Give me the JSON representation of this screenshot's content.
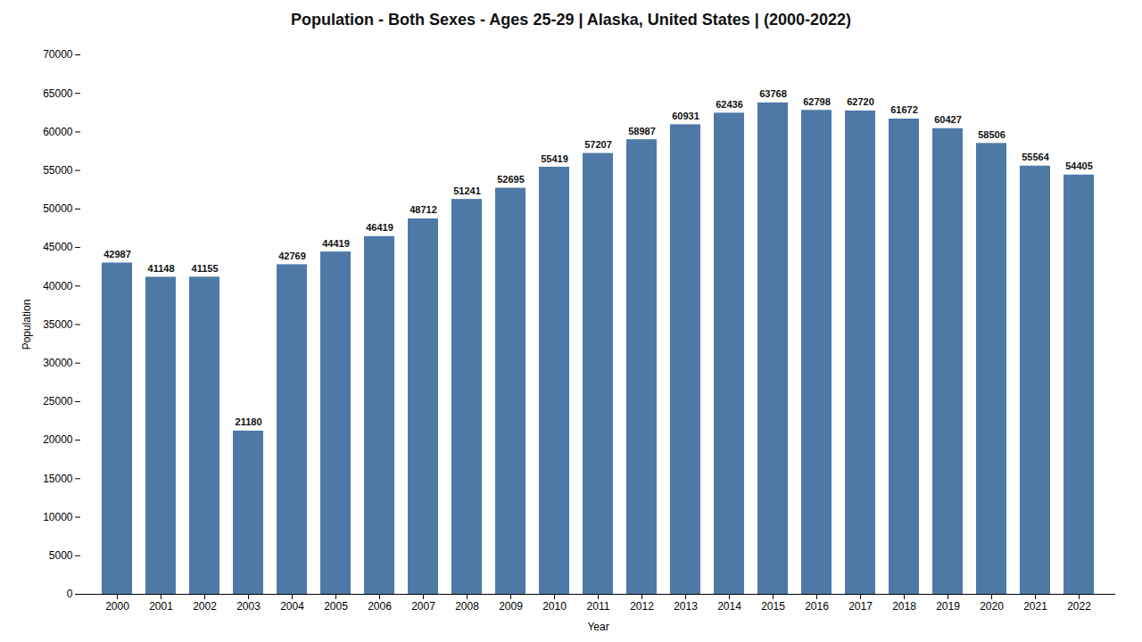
{
  "chart_data": {
    "type": "bar",
    "title": "Population - Both Sexes - Ages 25-29 | Alaska, United States |  (2000-2022)",
    "xlabel": "Year",
    "ylabel": "Population",
    "categories": [
      "2000",
      "2001",
      "2002",
      "2003",
      "2004",
      "2005",
      "2006",
      "2007",
      "2008",
      "2009",
      "2010",
      "2011",
      "2012",
      "2013",
      "2014",
      "2015",
      "2016",
      "2017",
      "2018",
      "2019",
      "2020",
      "2021",
      "2022"
    ],
    "values": [
      42987,
      41148,
      41155,
      21180,
      42769,
      44419,
      46419,
      48712,
      51241,
      52695,
      55419,
      57207,
      58987,
      60931,
      62436,
      63768,
      62798,
      62720,
      61672,
      60427,
      58506,
      55564,
      54405
    ],
    "ylim": [
      0,
      70000
    ],
    "yticks": [
      0,
      5000,
      10000,
      15000,
      20000,
      25000,
      30000,
      35000,
      40000,
      45000,
      50000,
      55000,
      60000,
      65000,
      70000
    ],
    "data_labels": true,
    "grid": false
  }
}
